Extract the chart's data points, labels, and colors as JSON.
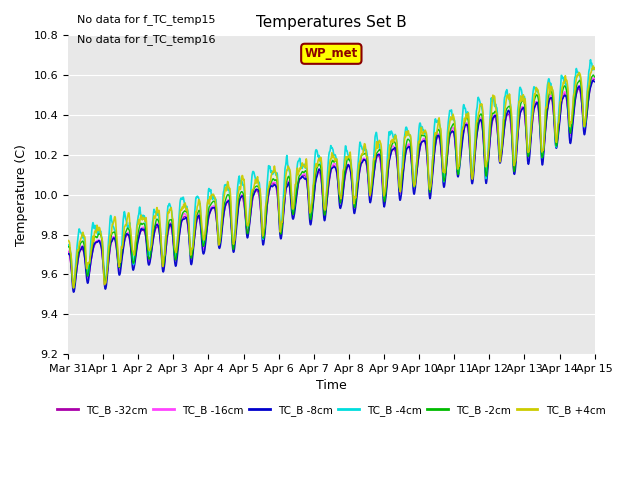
{
  "title": "Temperatures Set B",
  "xlabel": "Time",
  "ylabel": "Temperature (C)",
  "ylim": [
    9.2,
    10.8
  ],
  "annotation_lines": [
    "No data for f_TC_temp15",
    "No data for f_TC_temp16"
  ],
  "wp_met_label": "WP_met",
  "legend_entries": [
    {
      "label": "TC_B -32cm",
      "color": "#aa00aa"
    },
    {
      "label": "TC_B -16cm",
      "color": "#ff44ff"
    },
    {
      "label": "TC_B -8cm",
      "color": "#0000cc"
    },
    {
      "label": "TC_B -4cm",
      "color": "#00dddd"
    },
    {
      "label": "TC_B -2cm",
      "color": "#00bb00"
    },
    {
      "label": "TC_B +4cm",
      "color": "#cccc00"
    }
  ],
  "x_tick_labels": [
    "Mar 31",
    "Apr 1",
    "Apr 2",
    "Apr 3",
    "Apr 4",
    "Apr 5",
    "Apr 6",
    "Apr 7",
    "Apr 8",
    "Apr 9",
    "Apr 10",
    "Apr 11",
    "Apr 12",
    "Apr 13",
    "Apr 14",
    "Apr 15"
  ],
  "bg_color": "#e8e8e8",
  "fig_color": "#ffffff",
  "note_fontsize": 8,
  "title_fontsize": 11,
  "tick_fontsize": 8,
  "label_fontsize": 9
}
